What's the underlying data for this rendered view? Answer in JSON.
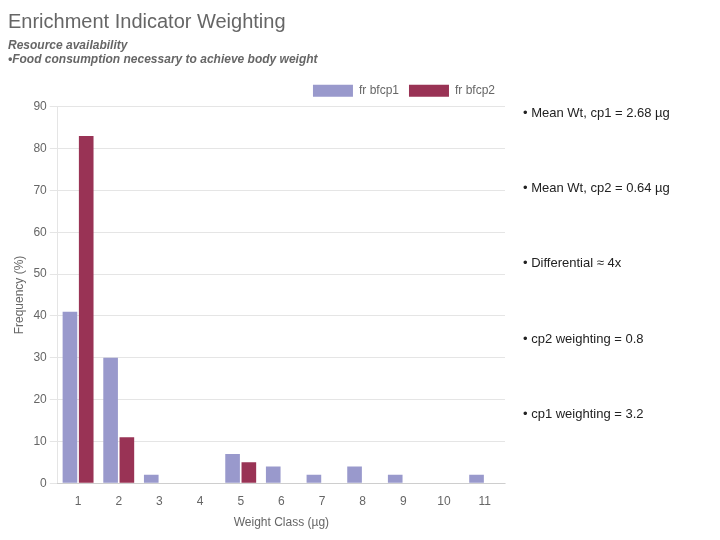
{
  "chart_data": {
    "type": "bar",
    "title": "Enrichment Indicator Weighting",
    "subtitle": [
      "Resource availability",
      "•Food consumption necessary to achieve body weight"
    ],
    "xlabel": "Weight Class (µg)",
    "ylabel": "Frequency (%)",
    "categories": [
      "1",
      "2",
      "3",
      "4",
      "5",
      "6",
      "7",
      "8",
      "9",
      "10",
      "11"
    ],
    "series": [
      {
        "name": "fr bfcp1",
        "color": "#9999cc",
        "values": [
          41,
          30,
          2,
          0,
          7,
          4,
          2,
          4,
          2,
          0,
          2
        ]
      },
      {
        "name": "fr bfcp2",
        "color": "#993355",
        "values": [
          83,
          11,
          0,
          0,
          5,
          0,
          0,
          0,
          0,
          0,
          0
        ]
      }
    ],
    "ylim": [
      0,
      90
    ],
    "yticks": [
      0,
      10,
      20,
      30,
      40,
      50,
      60,
      70,
      80,
      90
    ],
    "grid": true,
    "legend": "upper right",
    "annotations": [
      "• Mean Wt, cp1 = 2.68 µg",
      "• Mean Wt, cp2 = 0.64 µg",
      "• Differential ≈ 4x",
      "• cp2 weighting = 0.8",
      "• cp1 weighting = 3.2"
    ]
  }
}
